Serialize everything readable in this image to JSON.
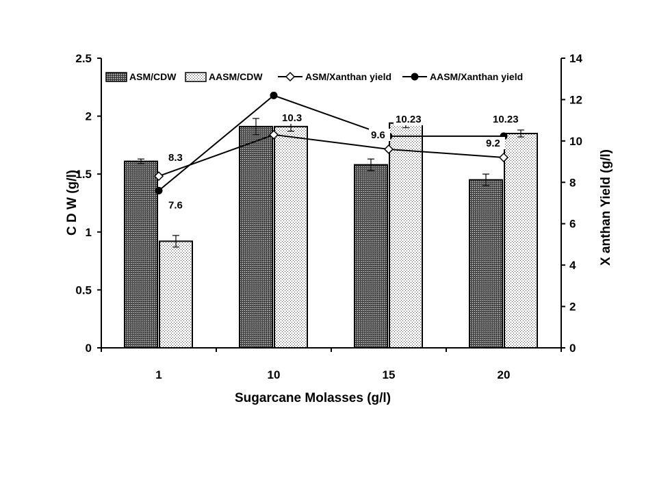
{
  "chart_data": {
    "type": "bar",
    "categories": [
      "1",
      "10",
      "15",
      "20"
    ],
    "xlabel": "Sugarcane Molasses (g/l)",
    "ylabel": "C D W  (g/l)",
    "y2label": "X anthan Yield (g/l)",
    "ylim": [
      0,
      2.5
    ],
    "y2lim": [
      0,
      14
    ],
    "yticks": [
      "0",
      "0.5",
      "1",
      "1.5",
      "2",
      "2.5"
    ],
    "y2ticks": [
      "0",
      "2",
      "4",
      "6",
      "8",
      "10",
      "12",
      "14"
    ],
    "legend_position": "top",
    "grid": false,
    "bar_series": [
      {
        "name": "ASM/CDW",
        "values": [
          1.61,
          1.91,
          1.58,
          1.45
        ],
        "errors": [
          0.02,
          0.07,
          0.05,
          0.05
        ],
        "pattern": "dark-stipple"
      },
      {
        "name": "AASM/CDW",
        "values": [
          0.92,
          1.91,
          1.94,
          1.85
        ],
        "errors": [
          0.05,
          0.04,
          0.04,
          0.03
        ],
        "pattern": "light-dots"
      }
    ],
    "line_series": [
      {
        "name": "ASM/Xanthan yield",
        "values": [
          8.3,
          10.3,
          9.6,
          9.2
        ],
        "marker": "diamond-open",
        "axis": "right"
      },
      {
        "name": "AASM/Xanthan yield",
        "values": [
          7.6,
          12.2,
          10.23,
          10.23
        ],
        "marker": "circle-filled",
        "axis": "right"
      }
    ],
    "data_labels": [
      {
        "text": "8.3",
        "series": "ASM/Xanthan yield",
        "index": 0
      },
      {
        "text": "7.6",
        "series": "AASM/Xanthan yield",
        "index": 0
      },
      {
        "text": "10.3",
        "series": "ASM/Xanthan yield",
        "index": 1
      },
      {
        "text": "10.23",
        "series": "AASM/Xanthan yield",
        "index": 2
      },
      {
        "text": "9.6",
        "series": "ASM/Xanthan yield",
        "index": 2
      },
      {
        "text": "10.23",
        "series": "AASM/Xanthan yield",
        "index": 3
      },
      {
        "text": "9.2",
        "series": "ASM/Xanthan yield",
        "index": 3
      }
    ]
  }
}
